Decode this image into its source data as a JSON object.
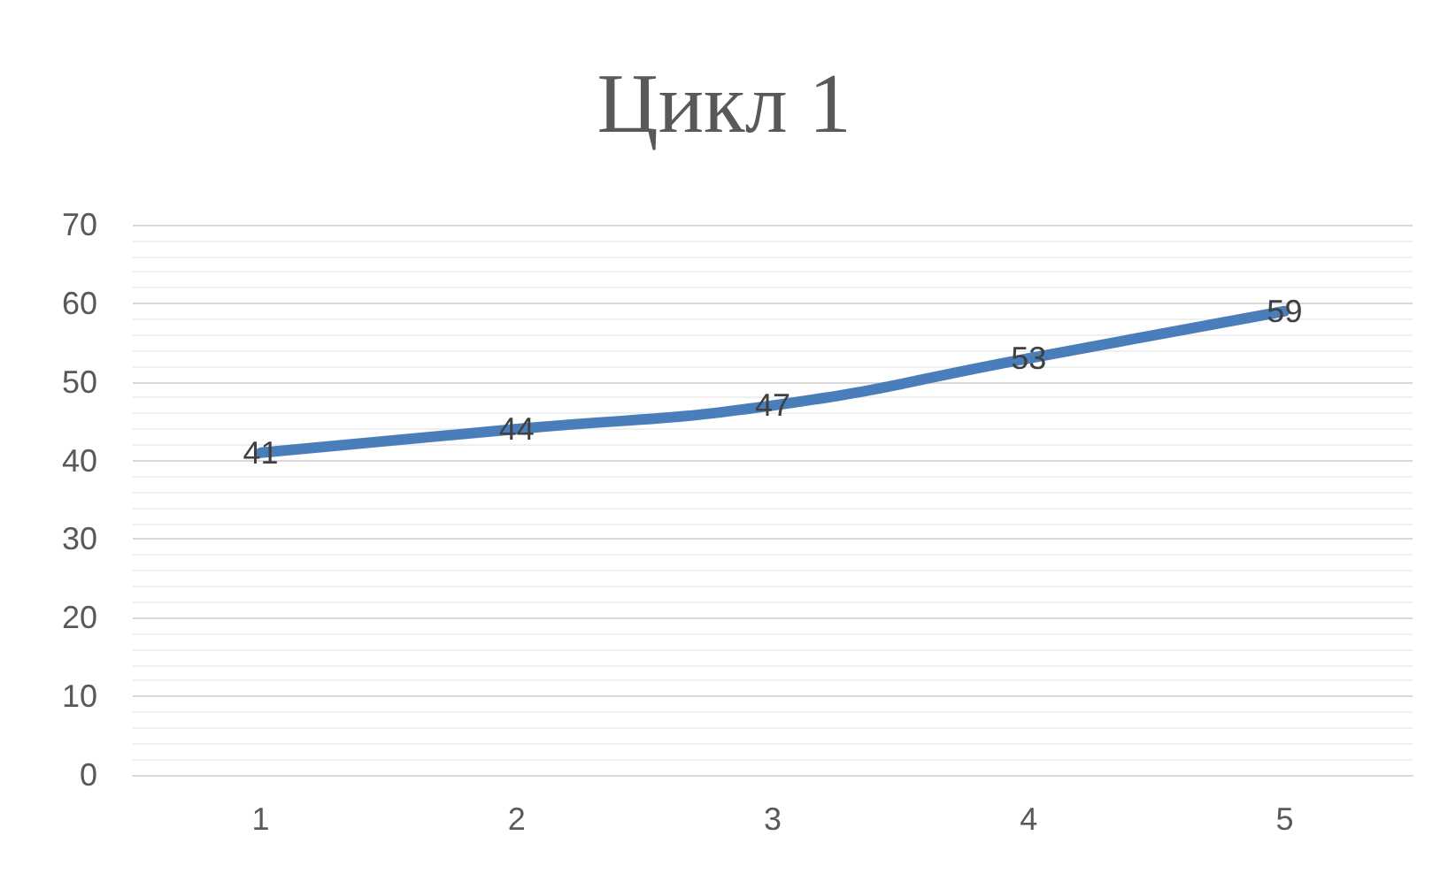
{
  "chart_data": {
    "type": "line",
    "title": "Цикл 1",
    "categories": [
      "1",
      "2",
      "3",
      "4",
      "5"
    ],
    "series": [
      {
        "color": "#4a7ebb",
        "values": [
          41,
          44,
          47,
          53,
          59
        ]
      }
    ],
    "ylim": [
      0,
      70
    ],
    "yticks": [
      0,
      10,
      20,
      30,
      40,
      50,
      60,
      70
    ],
    "grid": "y",
    "data_labels": true
  }
}
